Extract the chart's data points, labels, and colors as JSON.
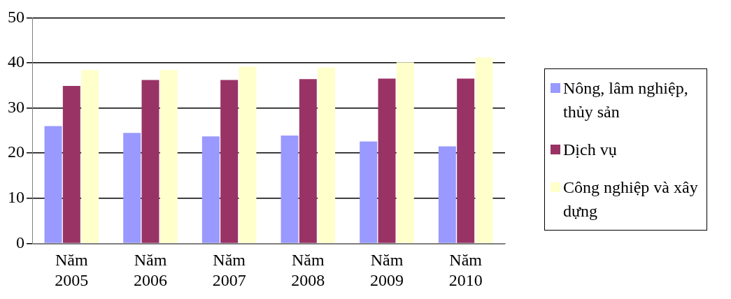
{
  "chart_data": {
    "type": "bar",
    "categories": [
      "Năm 2005",
      "Năm 2006",
      "Năm 2007",
      "Năm 2008",
      "Năm 2009",
      "Năm 2010"
    ],
    "series": [
      {
        "name": "Nông, lâm nghiệp, thủy sản",
        "color": "#9999ff",
        "values": [
          26.0,
          24.5,
          23.7,
          23.9,
          22.6,
          21.5
        ]
      },
      {
        "name": "Dịch vụ",
        "color": "#993366",
        "values": [
          34.9,
          36.2,
          36.2,
          36.4,
          36.5,
          36.5
        ]
      },
      {
        "name": "Công nghiệp và xây dựng",
        "color": "#ffffcc",
        "values": [
          38.4,
          38.4,
          39.2,
          39.0,
          40.1,
          41.2
        ]
      }
    ],
    "ylim": [
      0,
      50
    ],
    "yticks": [
      0,
      10,
      20,
      30,
      40,
      50
    ],
    "grid": "y",
    "legend": "right"
  }
}
